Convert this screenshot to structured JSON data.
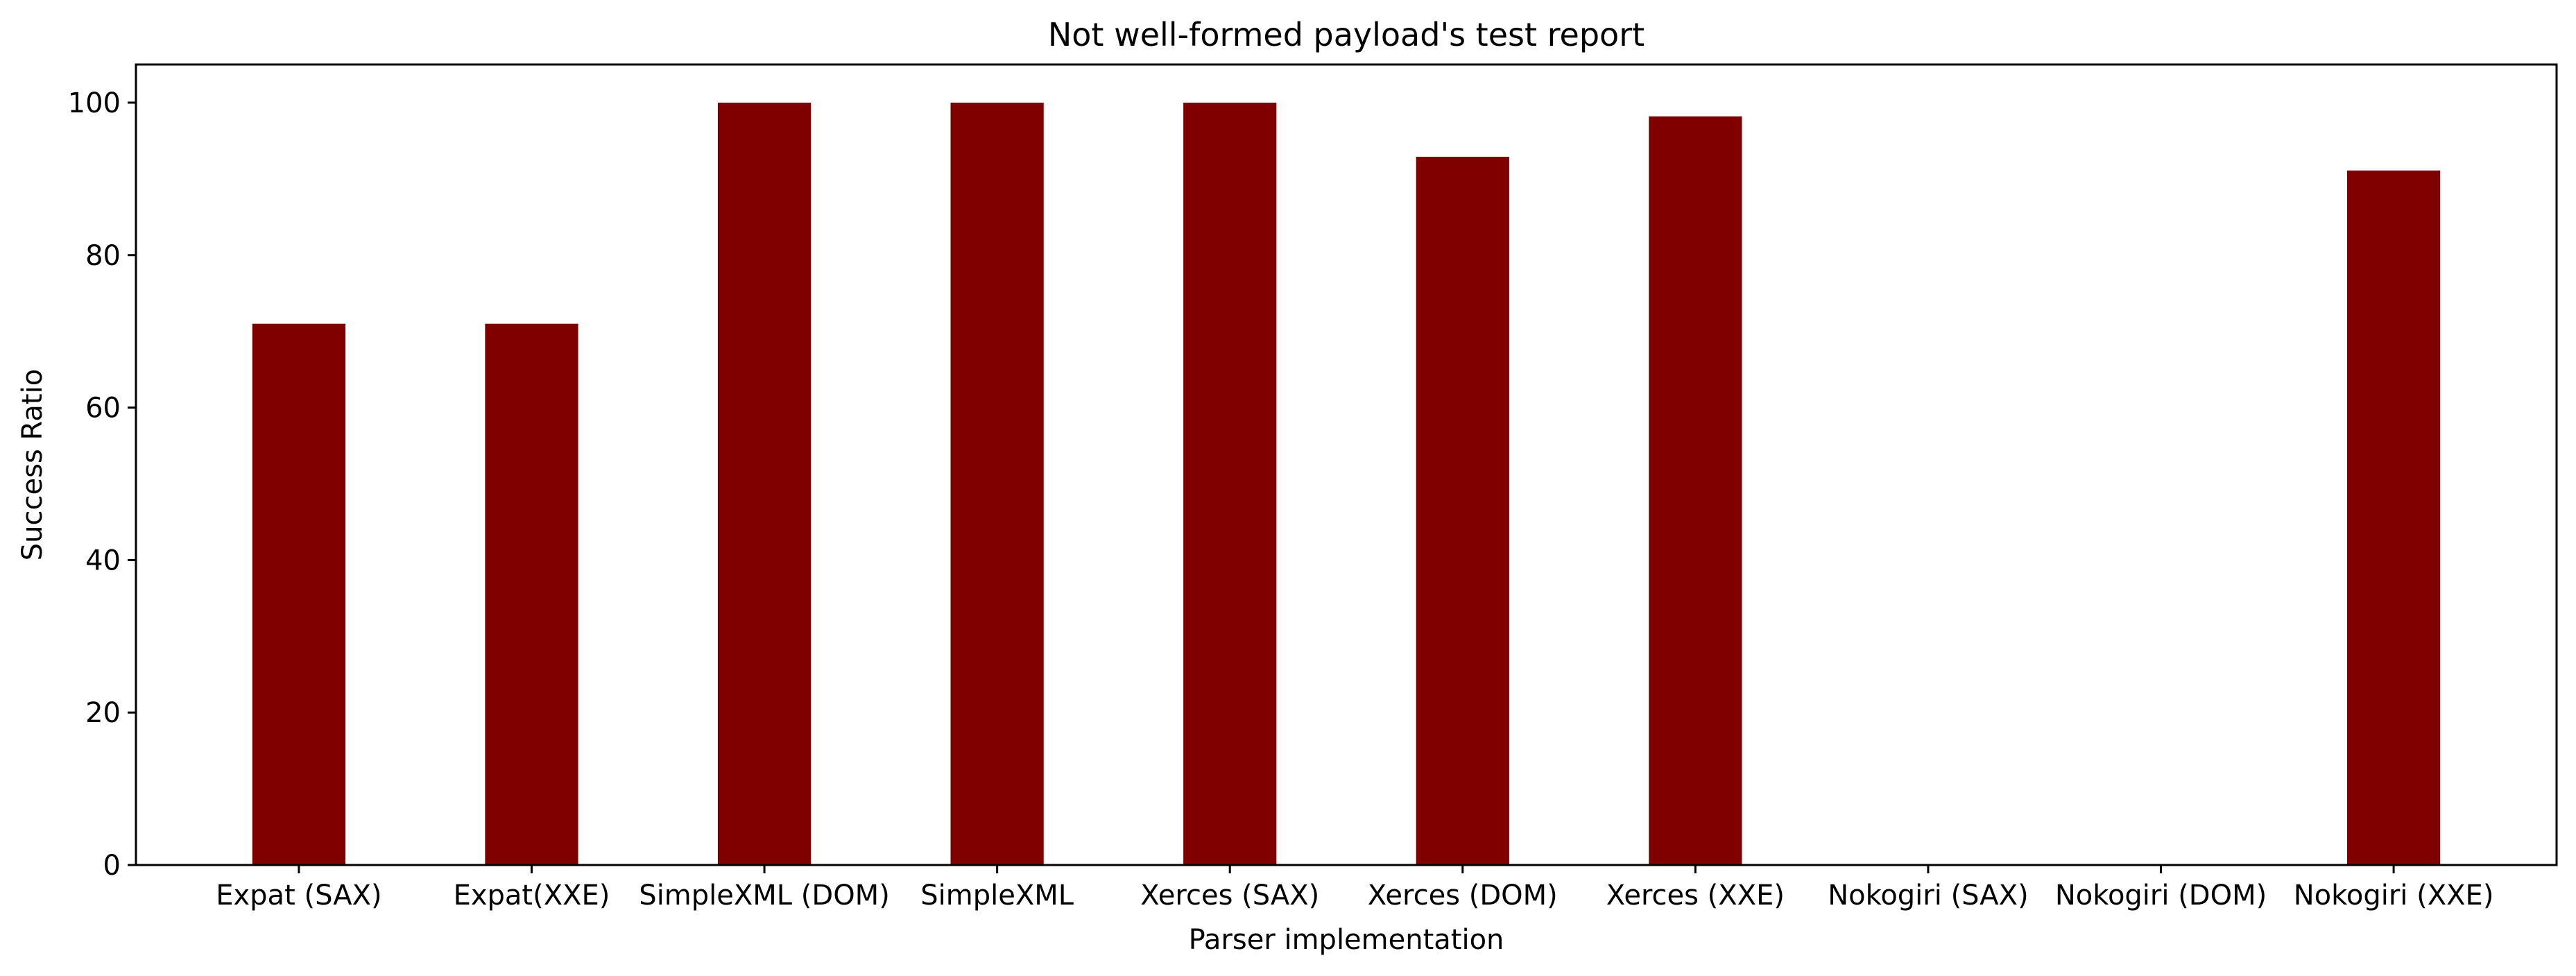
{
  "chart_data": {
    "type": "bar",
    "title": "Not well-formed payload's test report",
    "xlabel": "Parser implementation",
    "ylabel": "Success Ratio",
    "categories": [
      "Expat (SAX)",
      "Expat(XXE)",
      "SimpleXML (DOM)",
      "SimpleXML",
      "Xerces (SAX)",
      "Xerces (DOM)",
      "Xerces (XXE)",
      "Nokogiri (SAX)",
      "Nokogiri (DOM)",
      "Nokogiri (XXE)"
    ],
    "values": [
      71,
      71,
      100,
      100,
      100,
      92.9,
      98.2,
      0,
      0,
      91.1
    ],
    "ylim": [
      0,
      105
    ],
    "yticks": [
      0,
      20,
      40,
      60,
      80,
      100
    ],
    "grid": false,
    "legend": "none",
    "bar_color": "#800000"
  }
}
